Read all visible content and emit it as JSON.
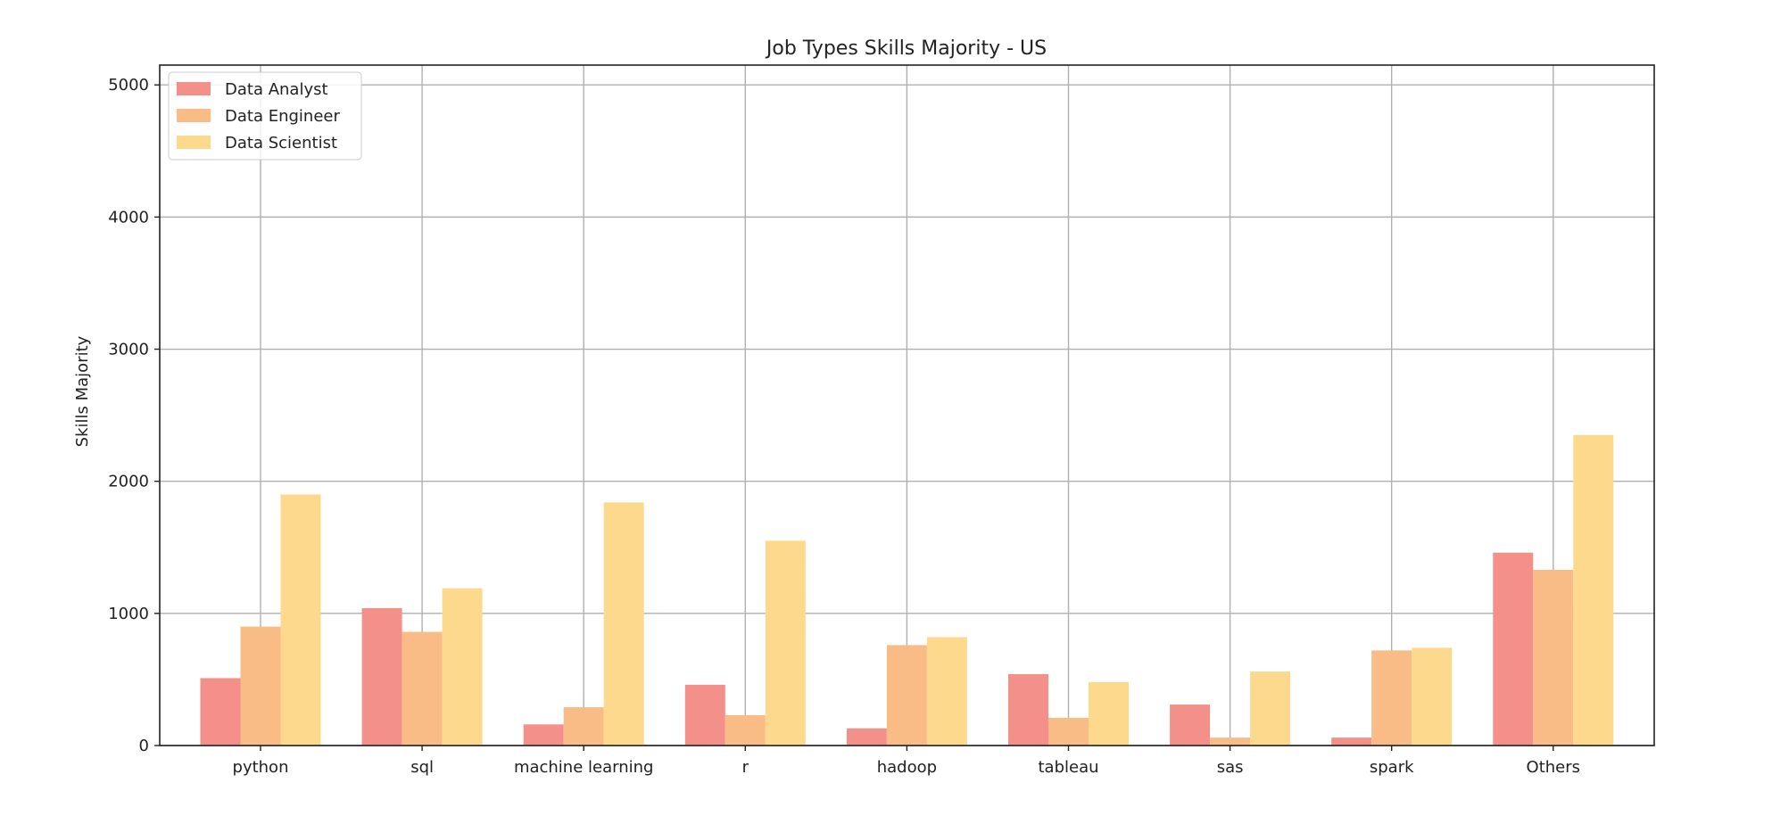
{
  "chart_data": {
    "type": "bar",
    "title": "Job Types Skills Majority - US",
    "xlabel": "",
    "ylabel": "Skills Majority",
    "categories": [
      "python",
      "sql",
      "machine learning",
      "r",
      "hadoop",
      "tableau",
      "sas",
      "spark",
      "Others"
    ],
    "series": [
      {
        "name": "Data Analyst",
        "color": "#f4908a",
        "values": [
          510,
          1040,
          160,
          460,
          130,
          540,
          310,
          60,
          1460
        ]
      },
      {
        "name": "Data Engineer",
        "color": "#f9bc87",
        "values": [
          900,
          860,
          290,
          230,
          760,
          210,
          60,
          720,
          1330
        ]
      },
      {
        "name": "Data Scientist",
        "color": "#fdd98d",
        "values": [
          1900,
          1190,
          1840,
          1550,
          820,
          480,
          560,
          740,
          2350
        ]
      }
    ],
    "ylim": [
      0,
      5150
    ],
    "yticks": [
      0,
      1000,
      2000,
      3000,
      4000,
      5000
    ],
    "grid": true,
    "legend_position": "top-left"
  }
}
